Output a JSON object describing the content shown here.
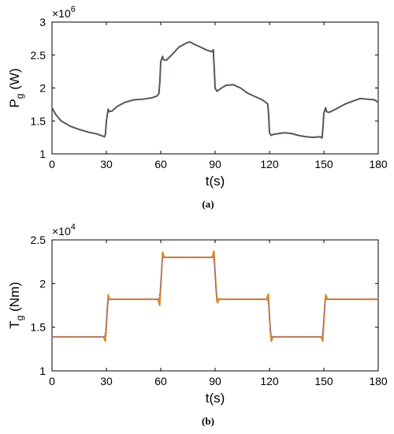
{
  "chart_data": [
    {
      "type": "line",
      "panel_label": "(a)",
      "xlabel": "t(s)",
      "ylabel_main": "P",
      "ylabel_sub": "g",
      "ylabel_unit": " (W)",
      "exponent_base": "×10",
      "exponent_power": "6",
      "xlim": [
        0,
        180
      ],
      "ylim": [
        1,
        3
      ],
      "xticks": [
        "0",
        "30",
        "60",
        "90",
        "120",
        "150",
        "180"
      ],
      "yticks": [
        "1",
        "1.5",
        "2",
        "2.5",
        "3"
      ],
      "grid": false,
      "series": [
        {
          "color": "#555566",
          "x": [
            0,
            2,
            5,
            10,
            15,
            20,
            25,
            28,
            29,
            29.5,
            30,
            31,
            31.5,
            33,
            36,
            40,
            45,
            50,
            55,
            58,
            59,
            59.5,
            60,
            61,
            61.5,
            63,
            66,
            70,
            74,
            76,
            78,
            82,
            85,
            88,
            89,
            89.5,
            90,
            91,
            91.5,
            93,
            96,
            100,
            104,
            108,
            112,
            116,
            118,
            119,
            119.5,
            120,
            121,
            121.5,
            123,
            128,
            132,
            136,
            140,
            144,
            148,
            149,
            149.5,
            150,
            151,
            151.5,
            153,
            158,
            162,
            166,
            170,
            174,
            178,
            180
          ],
          "y": [
            1.7,
            1.6,
            1.5,
            1.42,
            1.37,
            1.33,
            1.3,
            1.27,
            1.26,
            1.3,
            1.5,
            1.68,
            1.64,
            1.65,
            1.72,
            1.78,
            1.82,
            1.83,
            1.85,
            1.88,
            1.92,
            2.1,
            2.4,
            2.48,
            2.43,
            2.42,
            2.5,
            2.62,
            2.68,
            2.7,
            2.67,
            2.62,
            2.58,
            2.55,
            2.58,
            2.3,
            2.0,
            1.95,
            1.96,
            1.99,
            2.04,
            2.05,
            2.0,
            1.92,
            1.87,
            1.82,
            1.78,
            1.76,
            1.6,
            1.32,
            1.28,
            1.29,
            1.3,
            1.32,
            1.31,
            1.28,
            1.26,
            1.25,
            1.26,
            1.24,
            1.4,
            1.62,
            1.7,
            1.64,
            1.63,
            1.7,
            1.76,
            1.8,
            1.84,
            1.83,
            1.82,
            1.78
          ]
        }
      ]
    },
    {
      "type": "line",
      "panel_label": "(b)",
      "xlabel": "t(s)",
      "ylabel_main": "T",
      "ylabel_sub": "g",
      "ylabel_unit": " (Nm)",
      "exponent_base": "×10",
      "exponent_power": "4",
      "xlim": [
        0,
        180
      ],
      "ylim": [
        1,
        2.5
      ],
      "xticks": [
        "0",
        "30",
        "60",
        "90",
        "120",
        "150",
        "180"
      ],
      "yticks": [
        "1",
        "1.5",
        "2",
        "2.5"
      ],
      "grid": false,
      "series": [
        {
          "color": "#d98a1f",
          "x": [
            0,
            28.5,
            29,
            29.4,
            29.8,
            30.5,
            31,
            31.4,
            32,
            58.5,
            59,
            59.4,
            59.8,
            60.5,
            61,
            61.4,
            62,
            88.5,
            89,
            89.4,
            89.8,
            90.5,
            91,
            91.4,
            92,
            118.5,
            119,
            119.4,
            119.8,
            120.5,
            121,
            121.4,
            122,
            148.5,
            149,
            149.4,
            149.8,
            150.5,
            151,
            151.4,
            152,
            180
          ],
          "y": [
            1.39,
            1.39,
            1.36,
            1.34,
            1.45,
            1.7,
            1.87,
            1.84,
            1.82,
            1.82,
            1.78,
            1.75,
            1.9,
            2.15,
            2.36,
            2.33,
            2.3,
            2.3,
            2.35,
            2.37,
            2.2,
            1.95,
            1.8,
            1.78,
            1.82,
            1.82,
            1.86,
            1.88,
            1.7,
            1.45,
            1.34,
            1.36,
            1.39,
            1.39,
            1.36,
            1.34,
            1.5,
            1.75,
            1.87,
            1.85,
            1.82,
            1.82
          ]
        },
        {
          "color": "#7a5fb0",
          "x": [
            0,
            28.8,
            29.6,
            30.6,
            31.4,
            59,
            59.6,
            60.6,
            61.2,
            89,
            89.6,
            90.6,
            91.4,
            119,
            119.6,
            120.6,
            121.4,
            149,
            149.6,
            150.6,
            151.4,
            180
          ],
          "y": [
            1.39,
            1.39,
            1.45,
            1.75,
            1.82,
            1.82,
            1.9,
            2.2,
            2.3,
            2.3,
            2.2,
            1.9,
            1.82,
            1.82,
            1.72,
            1.45,
            1.39,
            1.39,
            1.5,
            1.78,
            1.82,
            1.82
          ]
        }
      ]
    }
  ]
}
